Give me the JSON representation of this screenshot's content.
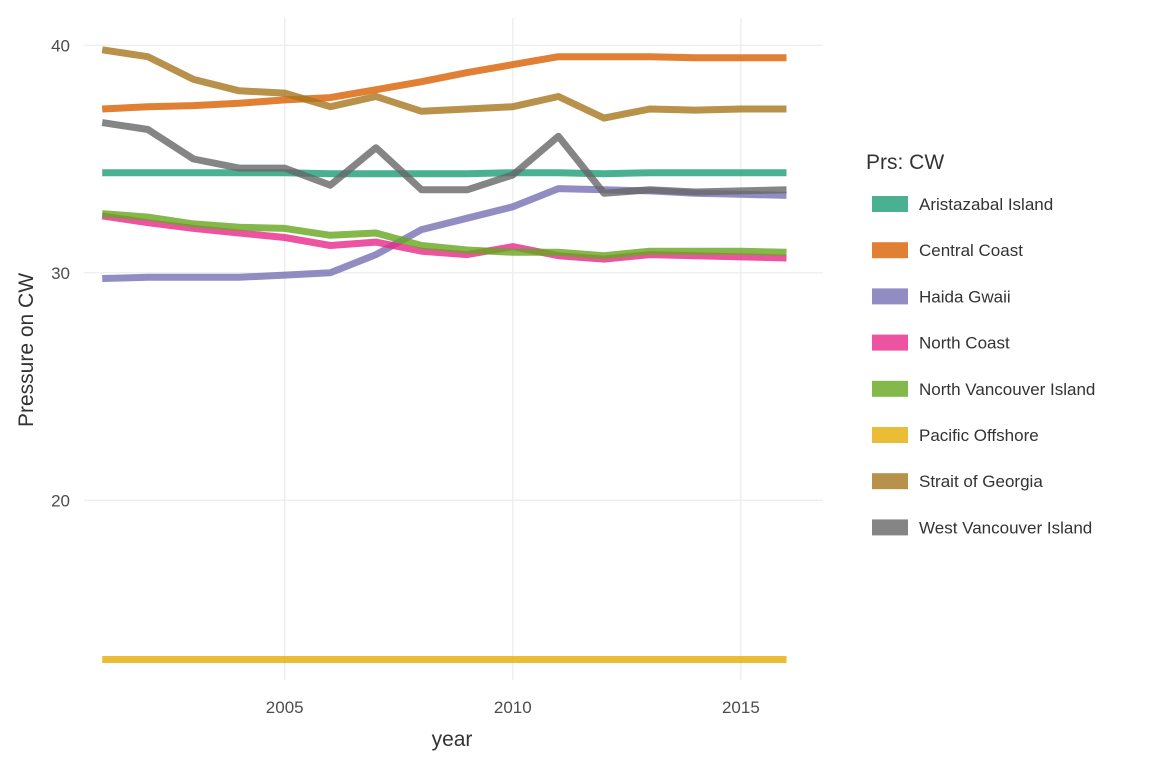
{
  "chart_data": {
    "type": "line",
    "xlabel": "year",
    "ylabel": "Pressure on CW",
    "legend_title": "Prs: CW",
    "legend_position": "right",
    "grid": true,
    "xlim": [
      2000.6,
      2016.8
    ],
    "ylim": [
      12.1,
      41.2
    ],
    "x_ticks": [
      2005,
      2010,
      2015
    ],
    "y_ticks": [
      20,
      30,
      40
    ],
    "x": [
      2001,
      2002,
      2003,
      2004,
      2005,
      2006,
      2007,
      2008,
      2009,
      2010,
      2011,
      2012,
      2013,
      2014,
      2015,
      2016
    ],
    "series": [
      {
        "name": "Aristazabal Island",
        "color": "#1b9e77",
        "values": [
          34.4,
          34.4,
          34.4,
          34.4,
          34.4,
          34.35,
          34.35,
          34.35,
          34.35,
          34.4,
          34.4,
          34.35,
          34.4,
          34.4,
          34.4,
          34.4
        ]
      },
      {
        "name": "Central Coast",
        "color": "#d95f02",
        "values": [
          37.2,
          37.3,
          37.35,
          37.45,
          37.6,
          37.7,
          38.05,
          38.4,
          38.8,
          39.15,
          39.5,
          39.5,
          39.5,
          39.45,
          39.45,
          39.45
        ]
      },
      {
        "name": "Haida Gwaii",
        "color": "#7570b3",
        "values": [
          29.75,
          29.8,
          29.8,
          29.8,
          29.9,
          30.0,
          30.8,
          31.9,
          32.4,
          32.9,
          33.7,
          33.65,
          33.6,
          33.5,
          33.45,
          33.4
        ]
      },
      {
        "name": "North Coast",
        "color": "#e7298a",
        "values": [
          32.5,
          32.2,
          31.95,
          31.75,
          31.55,
          31.2,
          31.35,
          30.95,
          30.8,
          31.15,
          30.75,
          30.6,
          30.8,
          30.75,
          30.7,
          30.65
        ]
      },
      {
        "name": "North Vancouver Island",
        "color": "#66a61e",
        "values": [
          32.6,
          32.45,
          32.15,
          32.0,
          31.95,
          31.65,
          31.75,
          31.2,
          31.0,
          30.9,
          30.9,
          30.75,
          30.95,
          30.95,
          30.95,
          30.9
        ]
      },
      {
        "name": "Pacific Offshore",
        "color": "#e6ab02",
        "values": [
          13.0,
          13.0,
          13.0,
          13.0,
          13.0,
          13.0,
          13.0,
          13.0,
          13.0,
          13.0,
          13.0,
          13.0,
          13.0,
          13.0,
          13.0,
          13.0
        ]
      },
      {
        "name": "Strait of Georgia",
        "color": "#a6761d",
        "values": [
          39.8,
          39.5,
          38.5,
          38.0,
          37.9,
          37.3,
          37.75,
          37.1,
          37.2,
          37.3,
          37.75,
          36.8,
          37.2,
          37.15,
          37.2,
          37.2
        ]
      },
      {
        "name": "West Vancouver Island",
        "color": "#666666",
        "values": [
          36.6,
          36.3,
          35.0,
          34.6,
          34.6,
          33.85,
          35.5,
          33.65,
          33.65,
          34.3,
          36.0,
          33.5,
          33.65,
          33.55,
          33.6,
          33.65
        ]
      }
    ]
  }
}
